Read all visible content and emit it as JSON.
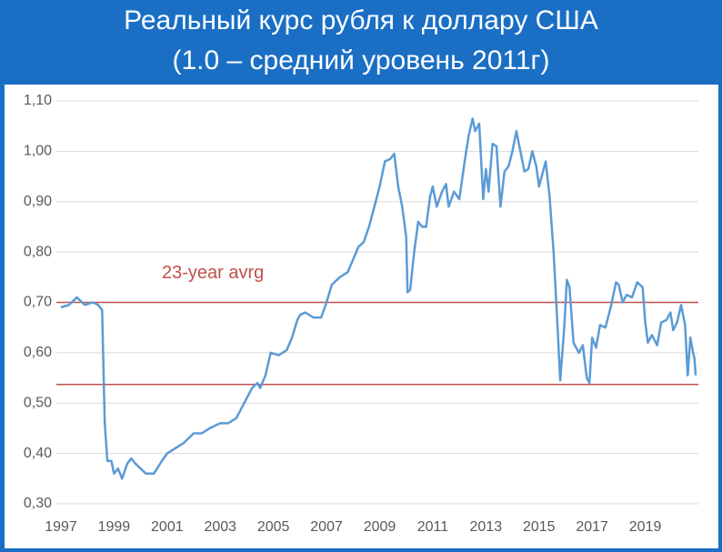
{
  "chart_data": {
    "type": "line",
    "title": "Реальный курс рубля к доллару США",
    "subtitle": "(1.0 – средний уровень 2011г)",
    "annotation": "23-year avrg",
    "hlines": [
      0.7,
      0.537
    ],
    "hline_color": "#c0504d",
    "grid": true,
    "xlim": [
      1997,
      2021
    ],
    "xticks": [
      1997,
      1999,
      2001,
      2003,
      2005,
      2007,
      2009,
      2011,
      2013,
      2015,
      2017,
      2019
    ],
    "ylim": [
      0.3,
      1.1
    ],
    "yticks": [
      {
        "value": 0.3,
        "label": "0,30"
      },
      {
        "value": 0.4,
        "label": "0,40"
      },
      {
        "value": 0.5,
        "label": "0,50"
      },
      {
        "value": 0.6,
        "label": "0,60"
      },
      {
        "value": 0.7,
        "label": "0,70"
      },
      {
        "value": 0.8,
        "label": "0,80"
      },
      {
        "value": 0.9,
        "label": "0,90"
      },
      {
        "value": 1.0,
        "label": "1,00"
      },
      {
        "value": 1.1,
        "label": "1,10"
      }
    ],
    "series": [
      {
        "color": "#5b9bd5",
        "x": [
          1997.0,
          1997.3,
          1997.6,
          1997.9,
          1998.2,
          1998.4,
          1998.55,
          1998.65,
          1998.75,
          1998.9,
          1999.0,
          1999.15,
          1999.3,
          1999.5,
          1999.65,
          1999.8,
          2000.0,
          2000.2,
          2000.5,
          2000.8,
          2001.0,
          2001.3,
          2001.6,
          2002.0,
          2002.3,
          2002.6,
          2003.0,
          2003.3,
          2003.6,
          2003.9,
          2004.2,
          2004.4,
          2004.5,
          2004.7,
          2004.9,
          2005.2,
          2005.5,
          2005.7,
          2005.9,
          2006.0,
          2006.2,
          2006.5,
          2006.8,
          2007.0,
          2007.2,
          2007.5,
          2007.8,
          2008.0,
          2008.2,
          2008.4,
          2008.6,
          2008.8,
          2009.0,
          2009.2,
          2009.4,
          2009.55,
          2009.7,
          2009.85,
          2010.0,
          2010.05,
          2010.15,
          2010.3,
          2010.45,
          2010.6,
          2010.75,
          2010.9,
          2011.0,
          2011.15,
          2011.35,
          2011.5,
          2011.6,
          2011.8,
          2012.0,
          2012.2,
          2012.35,
          2012.5,
          2012.6,
          2012.75,
          2012.9,
          2013.0,
          2013.1,
          2013.25,
          2013.4,
          2013.55,
          2013.7,
          2013.85,
          2014.0,
          2014.15,
          2014.3,
          2014.45,
          2014.6,
          2014.75,
          2014.9,
          2015.0,
          2015.1,
          2015.25,
          2015.4,
          2015.55,
          2015.7,
          2015.8,
          2015.95,
          2016.05,
          2016.15,
          2016.3,
          2016.5,
          2016.65,
          2016.8,
          2016.9,
          2017.0,
          2017.15,
          2017.3,
          2017.5,
          2017.7,
          2017.9,
          2018.0,
          2018.15,
          2018.3,
          2018.5,
          2018.7,
          2018.9,
          2019.0,
          2019.1,
          2019.25,
          2019.45,
          2019.6,
          2019.8,
          2019.95,
          2020.05,
          2020.2,
          2020.35,
          2020.5,
          2020.6,
          2020.7,
          2020.8,
          2020.85,
          2020.9
        ],
        "values": [
          0.69,
          0.695,
          0.71,
          0.695,
          0.7,
          0.695,
          0.685,
          0.46,
          0.385,
          0.385,
          0.36,
          0.37,
          0.35,
          0.38,
          0.39,
          0.38,
          0.37,
          0.36,
          0.36,
          0.385,
          0.4,
          0.41,
          0.42,
          0.44,
          0.44,
          0.45,
          0.46,
          0.46,
          0.47,
          0.5,
          0.53,
          0.54,
          0.53,
          0.555,
          0.6,
          0.595,
          0.605,
          0.63,
          0.665,
          0.675,
          0.68,
          0.67,
          0.67,
          0.7,
          0.735,
          0.75,
          0.76,
          0.785,
          0.81,
          0.82,
          0.85,
          0.89,
          0.93,
          0.98,
          0.985,
          0.995,
          0.93,
          0.89,
          0.83,
          0.72,
          0.725,
          0.8,
          0.86,
          0.85,
          0.85,
          0.91,
          0.93,
          0.89,
          0.92,
          0.935,
          0.89,
          0.92,
          0.905,
          0.98,
          1.03,
          1.065,
          1.04,
          1.055,
          0.905,
          0.965,
          0.92,
          1.015,
          1.01,
          0.89,
          0.96,
          0.97,
          1.0,
          1.04,
          1.0,
          0.96,
          0.965,
          1.0,
          0.97,
          0.93,
          0.95,
          0.98,
          0.91,
          0.8,
          0.65,
          0.545,
          0.65,
          0.745,
          0.73,
          0.62,
          0.6,
          0.615,
          0.55,
          0.54,
          0.63,
          0.61,
          0.655,
          0.65,
          0.69,
          0.74,
          0.735,
          0.7,
          0.715,
          0.71,
          0.74,
          0.73,
          0.66,
          0.62,
          0.635,
          0.615,
          0.66,
          0.665,
          0.68,
          0.645,
          0.66,
          0.695,
          0.655,
          0.555,
          0.63,
          0.6,
          0.59,
          0.555
        ]
      }
    ]
  }
}
